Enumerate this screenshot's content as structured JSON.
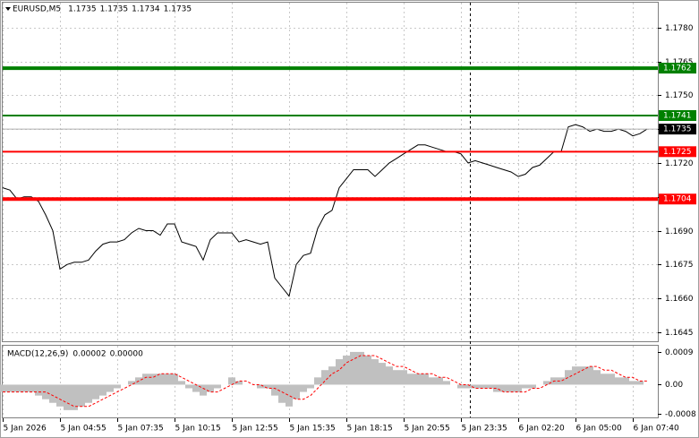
{
  "chart_data": [
    {
      "type": "line",
      "symbol": "EURUSD,M5",
      "ohlc": [
        1.1735,
        1.1735,
        1.1734,
        1.1735
      ],
      "categories": [
        "5 Jan 2026",
        null,
        null,
        null,
        null,
        null,
        null,
        null,
        "5 Jan 04:55",
        null,
        null,
        null,
        null,
        null,
        null,
        null,
        "5 Jan 07:35",
        null,
        null,
        null,
        null,
        null,
        null,
        null,
        "5 Jan 10:15",
        null,
        null,
        null,
        null,
        null,
        null,
        null,
        "5 Jan 12:55",
        null,
        null,
        null,
        null,
        null,
        null,
        null,
        "5 Jan 15:35",
        null,
        null,
        null,
        null,
        null,
        null,
        null,
        "5 Jan 18:15",
        null,
        null,
        null,
        null,
        null,
        null,
        null,
        "5 Jan 20:55",
        null,
        null,
        null,
        null,
        null,
        null,
        null,
        "5 Jan 23:35",
        null,
        null,
        null,
        null,
        null,
        null,
        null,
        "6 Jan 02:20",
        null,
        null,
        null,
        null,
        null,
        null,
        null,
        "6 Jan 05:00",
        null,
        null,
        null,
        null,
        null,
        null,
        null,
        "6 Jan 07:40",
        null,
        null
      ],
      "series": [
        {
          "color": "#000000",
          "values": [
            1.1709,
            1.1708,
            1.1704,
            1.1705,
            1.1705,
            1.1703,
            1.1697,
            1.169,
            1.1673,
            1.1675,
            1.1676,
            1.1676,
            1.1677,
            1.1681,
            1.1684,
            1.1685,
            1.1685,
            1.1686,
            1.1689,
            1.1691,
            1.169,
            1.169,
            1.1688,
            1.1693,
            1.1693,
            1.1685,
            1.1684,
            1.1683,
            1.1677,
            1.1686,
            1.1689,
            1.1689,
            1.1689,
            1.1685,
            1.1686,
            1.1685,
            1.1684,
            1.1685,
            1.1669,
            1.1665,
            1.1661,
            1.1675,
            1.1679,
            1.168,
            1.1691,
            1.1697,
            1.1699,
            1.1709,
            1.1713,
            1.1717,
            1.1717,
            1.1717,
            1.1714,
            1.1717,
            1.172,
            1.1722,
            1.1724,
            1.1726,
            1.1728,
            1.1728,
            1.1727,
            1.1726,
            1.1725,
            1.1725,
            1.1724,
            1.172,
            1.1721,
            1.172,
            1.1719,
            1.1718,
            1.1717,
            1.1716,
            1.1714,
            1.1715,
            1.1718,
            1.1719,
            1.1722,
            1.1725,
            1.1725,
            1.1736,
            1.1737,
            1.1736,
            1.1734,
            1.1735,
            1.1734,
            1.1734,
            1.1735,
            1.1734,
            1.1732,
            1.1733,
            1.1735
          ]
        }
      ],
      "ylim": [
        1.1641,
        1.1791
      ],
      "yticks": [
        {
          "value": 1.178,
          "label": "1.1780"
        },
        1.1765,
        {
          "value": 1.175,
          "label": "1.1750"
        },
        1.1735,
        {
          "value": 1.172,
          "label": "1.1720"
        },
        1.1705,
        {
          "value": 1.169,
          "label": "1.1690"
        },
        1.1675,
        {
          "value": 1.166,
          "label": "1.1660"
        },
        1.1645
      ],
      "levels": [
        {
          "value": 1.1762,
          "color": "#008000",
          "style": "thick"
        },
        {
          "value": 1.1741,
          "color": "#008000",
          "style": "thin"
        },
        {
          "value": 1.1725,
          "color": "#ff0000",
          "style": "thin"
        },
        {
          "value": 1.1704,
          "color": "#ff0000",
          "style": "thick"
        }
      ],
      "grid": true
    },
    {
      "type": "macd",
      "title": "MACD(12,26,9)",
      "readout": [
        {
          "value": 2e-05,
          "label": "0.00002"
        },
        {
          "value": 0,
          "label": "0.00000"
        }
      ],
      "series": [
        {
          "type": "bar",
          "color": "#c0c0c0",
          "values": [
            -0.0002,
            -0.0002,
            -0.0002,
            -0.0002,
            -0.0002,
            -0.0003,
            -0.0004,
            -0.0005,
            -0.0006,
            -0.0007,
            -0.0007,
            -0.0006,
            -0.0005,
            -0.0004,
            -0.0003,
            -0.0002,
            -0.0001,
            0.0,
            0.0001,
            0.0002,
            0.0003,
            0.0003,
            0.0003,
            0.0003,
            0.0003,
            0.0001,
            -0.0001,
            -0.0002,
            -0.0003,
            -0.0002,
            -0.0001,
            0.0,
            0.0002,
            0.0001,
            0.0,
            0.0,
            -0.0001,
            -0.0001,
            -0.0003,
            -0.0005,
            -0.0006,
            -0.0004,
            -0.0002,
            -0.0001,
            0.0002,
            0.0004,
            0.0005,
            0.0007,
            0.0008,
            0.0009,
            0.0009,
            0.0008,
            0.0007,
            0.0006,
            0.0005,
            0.0004,
            0.0004,
            0.0003,
            0.0003,
            0.0003,
            0.0002,
            0.0002,
            0.0001,
            0.0,
            -0.0001,
            -0.0001,
            -0.0001,
            -0.0001,
            -0.0001,
            -0.0002,
            -0.0002,
            -0.0002,
            -0.0002,
            -0.0001,
            -0.0001,
            0.0,
            0.0001,
            0.0002,
            0.0002,
            0.0004,
            0.0005,
            0.0005,
            0.0005,
            0.0004,
            0.0003,
            0.0003,
            0.0002,
            0.0002,
            0.0001,
            0.0001,
            0.0
          ]
        },
        {
          "type": "line",
          "color": "#ff0000",
          "dash": true,
          "values": [
            -0.0002,
            -0.0002,
            -0.0002,
            -0.0002,
            -0.0002,
            -0.0002,
            -0.0002,
            -0.0003,
            -0.0004,
            -0.0005,
            -0.0006,
            -0.0006,
            -0.0006,
            -0.0005,
            -0.0004,
            -0.0003,
            -0.0002,
            -0.0001,
            0.0,
            0.0001,
            0.0002,
            0.0002,
            0.0003,
            0.0003,
            0.0003,
            0.0002,
            0.0001,
            0.0,
            -0.0001,
            -0.0002,
            -0.0002,
            -0.0001,
            0.0,
            0.0001,
            0.0001,
            0.0,
            0.0,
            -0.0001,
            -0.0001,
            -0.0002,
            -0.0003,
            -0.0004,
            -0.0004,
            -0.0003,
            -0.0001,
            0.0001,
            0.0003,
            0.0004,
            0.0006,
            0.0007,
            0.0008,
            0.0008,
            0.0008,
            0.0007,
            0.0006,
            0.0005,
            0.0005,
            0.0004,
            0.0003,
            0.0003,
            0.0003,
            0.0002,
            0.0002,
            0.0001,
            0.0,
            0.0,
            -0.0001,
            -0.0001,
            -0.0001,
            -0.0001,
            -0.0002,
            -0.0002,
            -0.0002,
            -0.0002,
            -0.0001,
            -0.0001,
            0.0,
            0.0001,
            0.0001,
            0.0002,
            0.0003,
            0.0004,
            0.0005,
            0.0005,
            0.0004,
            0.0004,
            0.0003,
            0.0002,
            0.0002,
            0.0001,
            0.0001
          ]
        }
      ],
      "ylim": [
        -0.0009,
        0.00107
      ],
      "yticks": [
        0.0009,
        {
          "value": 0,
          "label": "0.00"
        },
        -0.0008
      ]
    }
  ]
}
